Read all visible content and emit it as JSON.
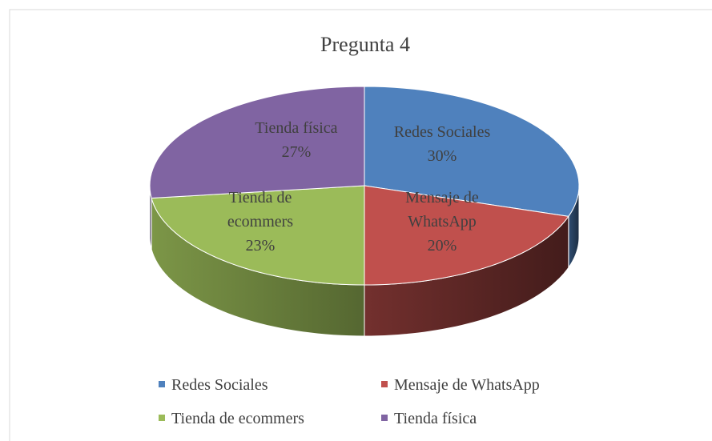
{
  "chart_data": {
    "type": "pie",
    "title": "Pregunta 4",
    "categories": [
      "Redes Sociales",
      "Mensaje de WhatsApp",
      "Tienda de ecommers",
      "Tienda física"
    ],
    "values": [
      30,
      20,
      23,
      27
    ],
    "value_labels": [
      "30%",
      "20%",
      "23%",
      "27%"
    ],
    "colors": [
      "#4f81bd",
      "#c0504d",
      "#9bbb59",
      "#8064a2"
    ],
    "legend": "bottom"
  }
}
